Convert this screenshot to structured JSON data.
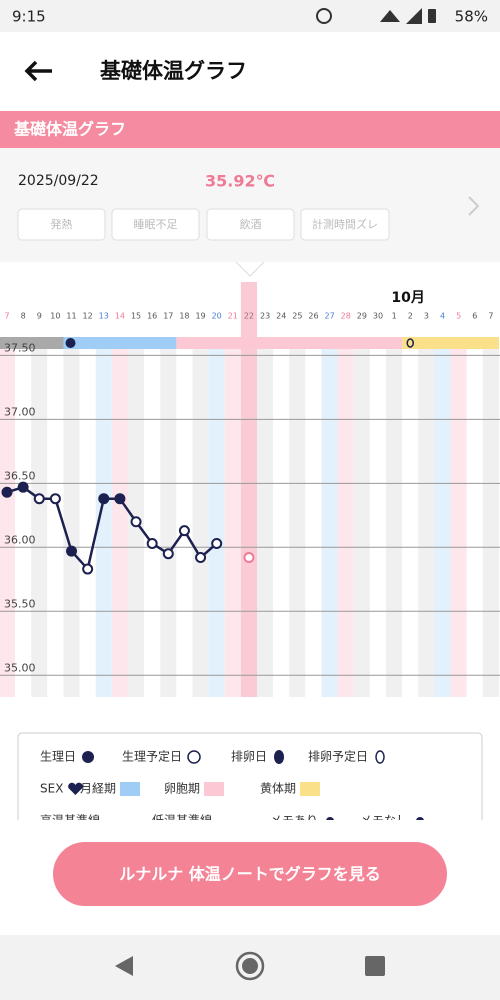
{
  "status_bar": {
    "time": "9:15",
    "battery": "58%"
  },
  "header": {
    "title": "基礎体温グラフ"
  },
  "section": {
    "title": "基礎体温グラフ"
  },
  "record": {
    "date": "2025/09/22",
    "temperature": "35.92℃",
    "tags": [
      "発熱",
      "睡眠不足",
      "飲酒",
      "計測時間ズレ"
    ]
  },
  "chart_data": {
    "type": "line",
    "month_label": "10月",
    "categories": [
      "7",
      "8",
      "9",
      "10",
      "11",
      "12",
      "13",
      "14",
      "15",
      "16",
      "17",
      "18",
      "19",
      "20",
      "21",
      "22",
      "23",
      "24",
      "25",
      "26",
      "27",
      "28",
      "29",
      "30",
      "1",
      "2",
      "3",
      "4",
      "5",
      "6",
      "7"
    ],
    "category_colors": [
      "#f07a96",
      "#555",
      "#555",
      "#555",
      "#555",
      "#555",
      "#4a7fd6",
      "#f07a96",
      "#555",
      "#555",
      "#555",
      "#555",
      "#555",
      "#4a7fd6",
      "#f07a96",
      "#555",
      "#555",
      "#555",
      "#555",
      "#555",
      "#4a7fd6",
      "#f07a96",
      "#555",
      "#555",
      "#555",
      "#555",
      "#555",
      "#4a7fd6",
      "#f07a96",
      "#555",
      "#555"
    ],
    "phases": [
      {
        "color": "#a9a9a9",
        "start": 0,
        "end": 3
      },
      {
        "color": "#9fcdf5",
        "start": 4,
        "end": 10
      },
      {
        "color": "#fcc8d4",
        "start": 11,
        "end": 24
      },
      {
        "color": "#fbe08a",
        "start": 25,
        "end": 30
      }
    ],
    "selected_index": 15,
    "series": [
      {
        "color": "#1c2150",
        "values": [
          36.43,
          36.47,
          36.38,
          36.38,
          35.97,
          35.83,
          36.38,
          36.38,
          36.2,
          36.03,
          35.95,
          36.13,
          35.92,
          36.03,
          null,
          null,
          null,
          null,
          null,
          null,
          null,
          null,
          null,
          null,
          null,
          null,
          null,
          null,
          null,
          null,
          null
        ],
        "filled": [
          true,
          true,
          false,
          false,
          true,
          false,
          true,
          true,
          false,
          false,
          false,
          false,
          false,
          false,
          null,
          null,
          null,
          null,
          null,
          null,
          null,
          null,
          null,
          null,
          null,
          null,
          null,
          null,
          null,
          null,
          null
        ]
      },
      {
        "color": "#f07a96",
        "values": [
          null,
          null,
          null,
          null,
          null,
          null,
          null,
          null,
          null,
          null,
          null,
          null,
          null,
          null,
          null,
          35.92,
          null,
          null,
          null,
          null,
          null,
          null,
          null,
          null,
          null,
          null,
          null,
          null,
          null,
          null,
          null
        ]
      }
    ],
    "ylim": [
      34.83,
      37.55
    ],
    "yticks": [
      {
        "value": 35,
        "label": "35.00"
      },
      {
        "value": 35.5,
        "label": "35.50"
      },
      {
        "value": 36,
        "label": "36.00"
      },
      {
        "value": 36.5,
        "label": "36.50"
      },
      {
        "value": 37,
        "label": "37.00"
      },
      {
        "value": 37.5,
        "label": "37.50"
      }
    ],
    "grid": true
  },
  "legend": {
    "items": [
      "生理日",
      "生理予定日",
      "排卵日",
      "排卵予定日",
      "SEX",
      "月経期",
      "卵胞期",
      "黄体期",
      "高温基準線",
      "低温基準線",
      "メモあり",
      "メモなし"
    ]
  },
  "button": {
    "label": "ルナルナ 体温ノートでグラフを見る"
  }
}
